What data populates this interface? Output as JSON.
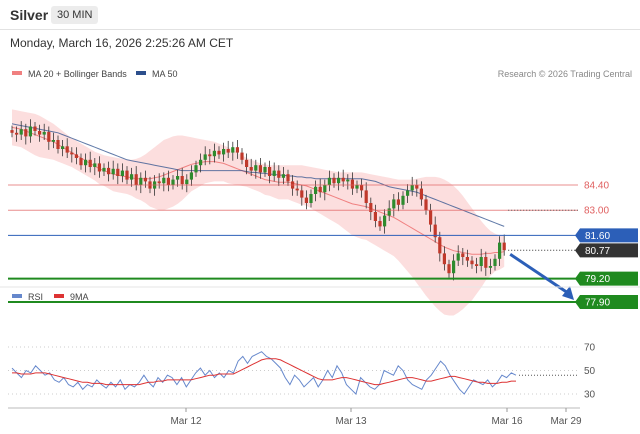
{
  "header": {
    "symbol": "Silver",
    "timeframe": "30 MIN",
    "timestamp": "Monday, March 16, 2026 2:25:26 AM CET"
  },
  "colors": {
    "bull": "#2e8b2e",
    "bear": "#c0392b",
    "ma20": "#f08080",
    "band_fill": "#fbd3d3",
    "ma50": "#2c4f8c",
    "resistance": "#e06060",
    "support": "#1f8a1f",
    "pivot": "#2c5fb8",
    "current": "#333333",
    "rsi": "#6688cc",
    "rsi_ma": "#dd3333"
  },
  "chart_data": [
    {
      "type": "candlestick",
      "title": "",
      "legend": [
        {
          "label": "MA 20 + Bollinger Bands",
          "color": "#f08080"
        },
        {
          "label": "MA 50",
          "color": "#2c4f8c"
        }
      ],
      "copyright": "Research © 2026 Trading Central",
      "x_ticks": [
        "Mar 12",
        "Mar 13",
        "Mar 16",
        "Mar 29"
      ],
      "levels": [
        {
          "value": 84.4,
          "label": "84.40",
          "kind": "resistance"
        },
        {
          "value": 83.0,
          "label": "83.00",
          "kind": "resistance"
        },
        {
          "value": 81.6,
          "label": "81.60",
          "kind": "pivot"
        },
        {
          "value": 80.77,
          "label": "80.77",
          "kind": "current"
        },
        {
          "value": 79.2,
          "label": "79.20",
          "kind": "support"
        },
        {
          "value": 77.9,
          "label": "77.90",
          "kind": "support"
        }
      ],
      "current_price": 80.77,
      "forecast_target": 77.9,
      "close": [
        87.3,
        87.2,
        87.5,
        87.1,
        87.65,
        87.4,
        87.2,
        87.35,
        86.8,
        86.9,
        86.4,
        86.55,
        86.2,
        86.1,
        85.9,
        85.5,
        85.8,
        85.4,
        85.6,
        85.15,
        85.35,
        85.0,
        85.3,
        84.9,
        85.2,
        84.7,
        85.0,
        84.4,
        84.8,
        84.6,
        84.2,
        84.6,
        84.5,
        84.8,
        84.4,
        84.7,
        84.9,
        84.45,
        84.7,
        85.1,
        85.5,
        85.8,
        86.1,
        86.0,
        86.3,
        86.1,
        86.4,
        86.2,
        86.5,
        86.2,
        85.8,
        85.4,
        85.2,
        85.5,
        85.1,
        85.4,
        84.9,
        85.2,
        84.8,
        85.0,
        84.6,
        84.2,
        84.1,
        83.7,
        83.4,
        83.9,
        84.3,
        84.0,
        84.4,
        84.8,
        84.5,
        84.8,
        84.6,
        84.7,
        84.2,
        84.4,
        84.1,
        83.4,
        82.9,
        82.4,
        82.1,
        82.7,
        83.1,
        83.6,
        83.3,
        83.8,
        84.1,
        84.4,
        84.2,
        83.6,
        83.0,
        82.2,
        81.5,
        80.6,
        80.0,
        79.5,
        80.2,
        80.6,
        80.4,
        80.2,
        80.0,
        79.9,
        80.4,
        79.8,
        79.9,
        80.3,
        81.2,
        80.77
      ],
      "ma20": [
        87.6,
        87.55,
        87.5,
        87.4,
        87.3,
        87.2,
        87.1,
        87.0,
        86.9,
        86.8,
        86.65,
        86.5,
        86.35,
        86.2,
        86.05,
        85.9,
        85.75,
        85.6,
        85.45,
        85.3,
        85.2,
        85.1,
        85.0,
        84.95,
        84.9,
        84.85,
        84.8,
        84.75,
        84.75,
        84.75,
        84.75,
        84.8,
        84.85,
        84.95,
        85.05,
        85.15,
        85.25,
        85.35,
        85.45,
        85.55,
        85.6,
        85.65,
        85.7,
        85.7,
        85.7,
        85.65,
        85.6,
        85.5,
        85.4,
        85.3,
        85.2,
        85.1,
        85.0,
        84.9,
        84.8,
        84.7,
        84.65,
        84.6,
        84.55,
        84.55,
        84.55,
        84.5,
        84.45,
        84.4,
        84.35,
        84.25,
        84.15,
        84.05,
        83.95,
        83.85,
        83.75,
        83.65,
        83.55,
        83.45,
        83.35,
        83.3,
        83.25,
        83.2,
        83.1,
        83.0,
        82.9,
        82.8,
        82.7,
        82.6,
        82.45,
        82.3,
        82.15,
        82.0,
        81.85,
        81.7,
        81.55,
        81.4,
        81.25,
        81.1,
        80.95,
        80.85,
        80.75,
        80.7,
        80.65,
        80.6,
        80.55,
        80.55,
        80.55,
        80.6,
        80.6,
        80.65,
        80.65,
        80.7
      ],
      "upper_band": [
        88.6,
        88.55,
        88.5,
        88.45,
        88.4,
        88.35,
        88.25,
        88.1,
        87.95,
        87.8,
        87.6,
        87.4,
        87.2,
        87.0,
        86.85,
        86.7,
        86.55,
        86.4,
        86.25,
        86.15,
        86.05,
        86.0,
        85.95,
        85.9,
        85.85,
        85.8,
        85.8,
        85.85,
        85.95,
        86.1,
        86.3,
        86.5,
        86.7,
        86.9,
        87.0,
        87.1,
        87.15,
        87.15,
        87.1,
        87.05,
        87.0,
        86.95,
        86.9,
        86.85,
        86.8,
        86.7,
        86.6,
        86.5,
        86.35,
        86.2,
        86.05,
        85.9,
        85.8,
        85.7,
        85.6,
        85.55,
        85.5,
        85.5,
        85.5,
        85.5,
        85.5,
        85.5,
        85.5,
        85.5,
        85.45,
        85.4,
        85.35,
        85.3,
        85.25,
        85.2,
        85.15,
        85.1,
        85.1,
        85.1,
        85.1,
        85.1,
        85.1,
        85.05,
        85.0,
        84.95,
        84.9,
        84.85,
        84.8,
        84.75,
        84.7,
        84.7,
        84.7,
        84.7,
        84.75,
        84.8,
        84.85,
        84.85,
        84.85,
        84.8,
        84.7,
        84.55,
        84.35,
        84.1,
        83.8,
        83.45,
        83.1,
        82.75,
        82.4,
        82.1,
        81.85,
        81.7,
        81.6,
        81.55
      ],
      "lower_band": [
        86.6,
        86.55,
        86.5,
        86.35,
        86.2,
        86.05,
        85.95,
        85.9,
        85.85,
        85.8,
        85.7,
        85.6,
        85.5,
        85.4,
        85.25,
        85.1,
        84.95,
        84.8,
        84.65,
        84.45,
        84.35,
        84.2,
        84.05,
        84.0,
        83.95,
        83.9,
        83.8,
        83.65,
        83.55,
        83.4,
        83.2,
        83.1,
        83.0,
        83.0,
        83.1,
        83.2,
        83.35,
        83.55,
        83.8,
        84.05,
        84.2,
        84.35,
        84.5,
        84.55,
        84.6,
        84.6,
        84.6,
        84.5,
        84.45,
        84.4,
        84.35,
        84.3,
        84.2,
        84.1,
        84.0,
        83.85,
        83.8,
        83.7,
        83.6,
        83.6,
        83.6,
        83.5,
        83.4,
        83.3,
        83.25,
        83.1,
        82.95,
        82.8,
        82.65,
        82.5,
        82.35,
        82.2,
        82.0,
        81.8,
        81.6,
        81.5,
        81.4,
        81.35,
        81.2,
        81.05,
        80.9,
        80.75,
        80.6,
        80.45,
        80.2,
        79.9,
        79.6,
        79.3,
        78.95,
        78.6,
        78.25,
        77.95,
        77.65,
        77.4,
        77.2,
        77.15,
        77.15,
        77.3,
        77.5,
        77.75,
        78.0,
        78.35,
        78.7,
        79.1,
        79.35,
        79.6,
        79.7,
        79.85
      ],
      "ma50": [
        87.8,
        87.75,
        87.7,
        87.65,
        87.6,
        87.55,
        87.5,
        87.45,
        87.4,
        87.35,
        87.3,
        87.2,
        87.1,
        87.0,
        86.9,
        86.8,
        86.7,
        86.6,
        86.5,
        86.4,
        86.3,
        86.2,
        86.1,
        86.0,
        85.9,
        85.8,
        85.75,
        85.7,
        85.65,
        85.6,
        85.55,
        85.5,
        85.45,
        85.4,
        85.35,
        85.3,
        85.25,
        85.2,
        85.2,
        85.2,
        85.2,
        85.2,
        85.2,
        85.2,
        85.2,
        85.2,
        85.2,
        85.2,
        85.2,
        85.2,
        85.2,
        85.15,
        85.1,
        85.1,
        85.05,
        85.05,
        85.0,
        85.0,
        84.95,
        84.95,
        84.9,
        84.9,
        84.85,
        84.85,
        84.8,
        84.8,
        84.75,
        84.75,
        84.75,
        84.75,
        84.75,
        84.75,
        84.75,
        84.75,
        84.75,
        84.75,
        84.75,
        84.7,
        84.65,
        84.6,
        84.5,
        84.4,
        84.3,
        84.25,
        84.2,
        84.15,
        84.1,
        84.05,
        84.0,
        83.9,
        83.8,
        83.7,
        83.6,
        83.5,
        83.4,
        83.3,
        83.2,
        83.1,
        83.0,
        82.9,
        82.8,
        82.7,
        82.6,
        82.5,
        82.4,
        82.3,
        82.2,
        82.1
      ]
    },
    {
      "type": "line",
      "title": "",
      "legend": [
        {
          "label": "RSI",
          "color": "#6688cc"
        },
        {
          "label": "9MA",
          "color": "#dd3333"
        }
      ],
      "y_ticks": [
        70,
        50,
        30
      ],
      "ylim": [
        20,
        80
      ],
      "rsi": [
        52,
        48,
        44,
        50,
        48,
        54,
        50,
        46,
        48,
        42,
        40,
        44,
        38,
        36,
        40,
        34,
        38,
        36,
        42,
        38,
        35,
        40,
        36,
        42,
        34,
        38,
        36,
        40,
        46,
        40,
        36,
        44,
        40,
        46,
        44,
        38,
        44,
        36,
        42,
        48,
        52,
        46,
        50,
        44,
        48,
        44,
        50,
        48,
        58,
        62,
        56,
        62,
        64,
        66,
        62,
        60,
        56,
        52,
        44,
        38,
        46,
        42,
        36,
        40,
        44,
        36,
        42,
        50,
        44,
        54,
        48,
        38,
        34,
        30,
        44,
        40,
        36,
        34,
        38,
        50,
        48,
        46,
        54,
        50,
        42,
        38,
        36,
        34,
        42,
        46,
        52,
        58,
        54,
        46,
        40,
        34,
        30,
        36,
        42,
        40,
        38,
        42,
        36,
        40,
        46,
        44,
        48,
        46
      ],
      "rsi_ma": [
        48,
        48,
        47,
        47,
        47,
        48,
        48,
        48,
        47,
        46,
        45,
        44,
        43,
        42,
        41,
        40,
        40,
        39,
        39,
        39,
        38,
        38,
        38,
        38,
        38,
        38,
        38,
        38,
        39,
        40,
        40,
        41,
        41,
        42,
        42,
        42,
        42,
        42,
        42,
        43,
        44,
        45,
        46,
        46,
        47,
        47,
        47,
        47,
        49,
        51,
        53,
        55,
        57,
        59,
        60,
        60,
        60,
        59,
        57,
        55,
        53,
        51,
        49,
        47,
        45,
        43,
        42,
        42,
        42,
        43,
        44,
        44,
        43,
        42,
        41,
        40,
        39,
        38,
        38,
        39,
        40,
        41,
        42,
        43,
        44,
        44,
        43,
        42,
        41,
        41,
        42,
        43,
        44,
        45,
        45,
        44,
        43,
        42,
        41,
        40,
        40,
        39,
        39,
        39,
        40,
        40,
        41,
        41
      ]
    }
  ]
}
